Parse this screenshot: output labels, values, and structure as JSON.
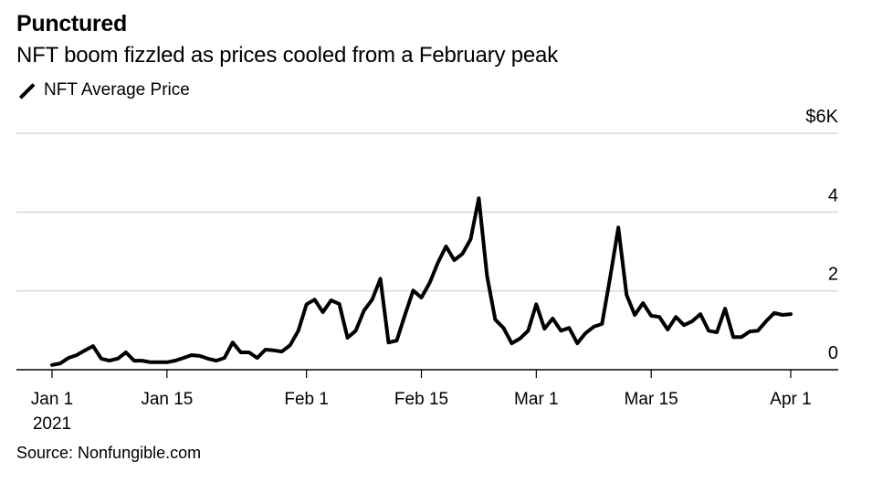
{
  "header": {
    "title": "Punctured",
    "subtitle": "NFT boom fizzled as prices cooled from a February peak"
  },
  "footer": {
    "source": "Source: Nonfungible.com"
  },
  "chart_data": {
    "type": "line",
    "title": "Punctured",
    "subtitle": "NFT boom fizzled as prices cooled from a February peak",
    "xlabel": "",
    "ylabel": "",
    "y_unit": "$K",
    "ylim": [
      0,
      6
    ],
    "yticks": [
      {
        "value": 0,
        "label": "0"
      },
      {
        "value": 2,
        "label": "2"
      },
      {
        "value": 4,
        "label": "4"
      },
      {
        "value": 6,
        "label": "$6K"
      }
    ],
    "xlim_days": [
      0,
      90
    ],
    "xticks": [
      {
        "day": 0,
        "label": "Jan 1",
        "sublabel": "2021"
      },
      {
        "day": 14,
        "label": "Jan 15"
      },
      {
        "day": 31,
        "label": "Feb 1"
      },
      {
        "day": 45,
        "label": "Feb 15"
      },
      {
        "day": 59,
        "label": "Mar 1"
      },
      {
        "day": 73,
        "label": "Mar 15"
      },
      {
        "day": 90,
        "label": "Apr 1"
      }
    ],
    "grid": true,
    "legend": "top-left",
    "series": [
      {
        "name": "NFT Average Price",
        "color": "#000000",
        "x_day": [
          0,
          1,
          2,
          3,
          4,
          5,
          6,
          7,
          8,
          9,
          10,
          11,
          12,
          13,
          14,
          15,
          16,
          17,
          18,
          19,
          20,
          21,
          22,
          23,
          24,
          25,
          26,
          27,
          28,
          29,
          30,
          31,
          32,
          33,
          34,
          35,
          36,
          37,
          38,
          39,
          40,
          41,
          42,
          43,
          44,
          45,
          46,
          47,
          48,
          49,
          50,
          51,
          52,
          53,
          54,
          55,
          56,
          57,
          58,
          59,
          60,
          61,
          62,
          63,
          64,
          65,
          66,
          67,
          68,
          69,
          70,
          71,
          72,
          73,
          74,
          75,
          76,
          77,
          78,
          79,
          80,
          81,
          82,
          83,
          84,
          85,
          86,
          87,
          88,
          89,
          90
        ],
        "values": [
          0.12,
          0.16,
          0.3,
          0.37,
          0.49,
          0.6,
          0.28,
          0.23,
          0.28,
          0.44,
          0.23,
          0.23,
          0.19,
          0.19,
          0.19,
          0.23,
          0.3,
          0.37,
          0.35,
          0.28,
          0.23,
          0.3,
          0.69,
          0.44,
          0.44,
          0.3,
          0.51,
          0.49,
          0.46,
          0.62,
          0.99,
          1.66,
          1.78,
          1.46,
          1.76,
          1.67,
          0.81,
          0.99,
          1.5,
          1.78,
          2.31,
          0.69,
          0.74,
          1.39,
          2.01,
          1.83,
          2.2,
          2.71,
          3.13,
          2.78,
          2.94,
          3.31,
          4.35,
          2.38,
          1.27,
          1.06,
          0.67,
          0.79,
          0.99,
          1.66,
          1.04,
          1.3,
          0.99,
          1.06,
          0.67,
          0.93,
          1.09,
          1.16,
          2.34,
          3.61,
          1.9,
          1.39,
          1.69,
          1.37,
          1.34,
          1.02,
          1.34,
          1.13,
          1.23,
          1.41,
          0.99,
          0.95,
          1.55,
          0.83,
          0.83,
          0.97,
          0.99,
          1.23,
          1.44,
          1.39,
          1.41
        ]
      }
    ]
  }
}
